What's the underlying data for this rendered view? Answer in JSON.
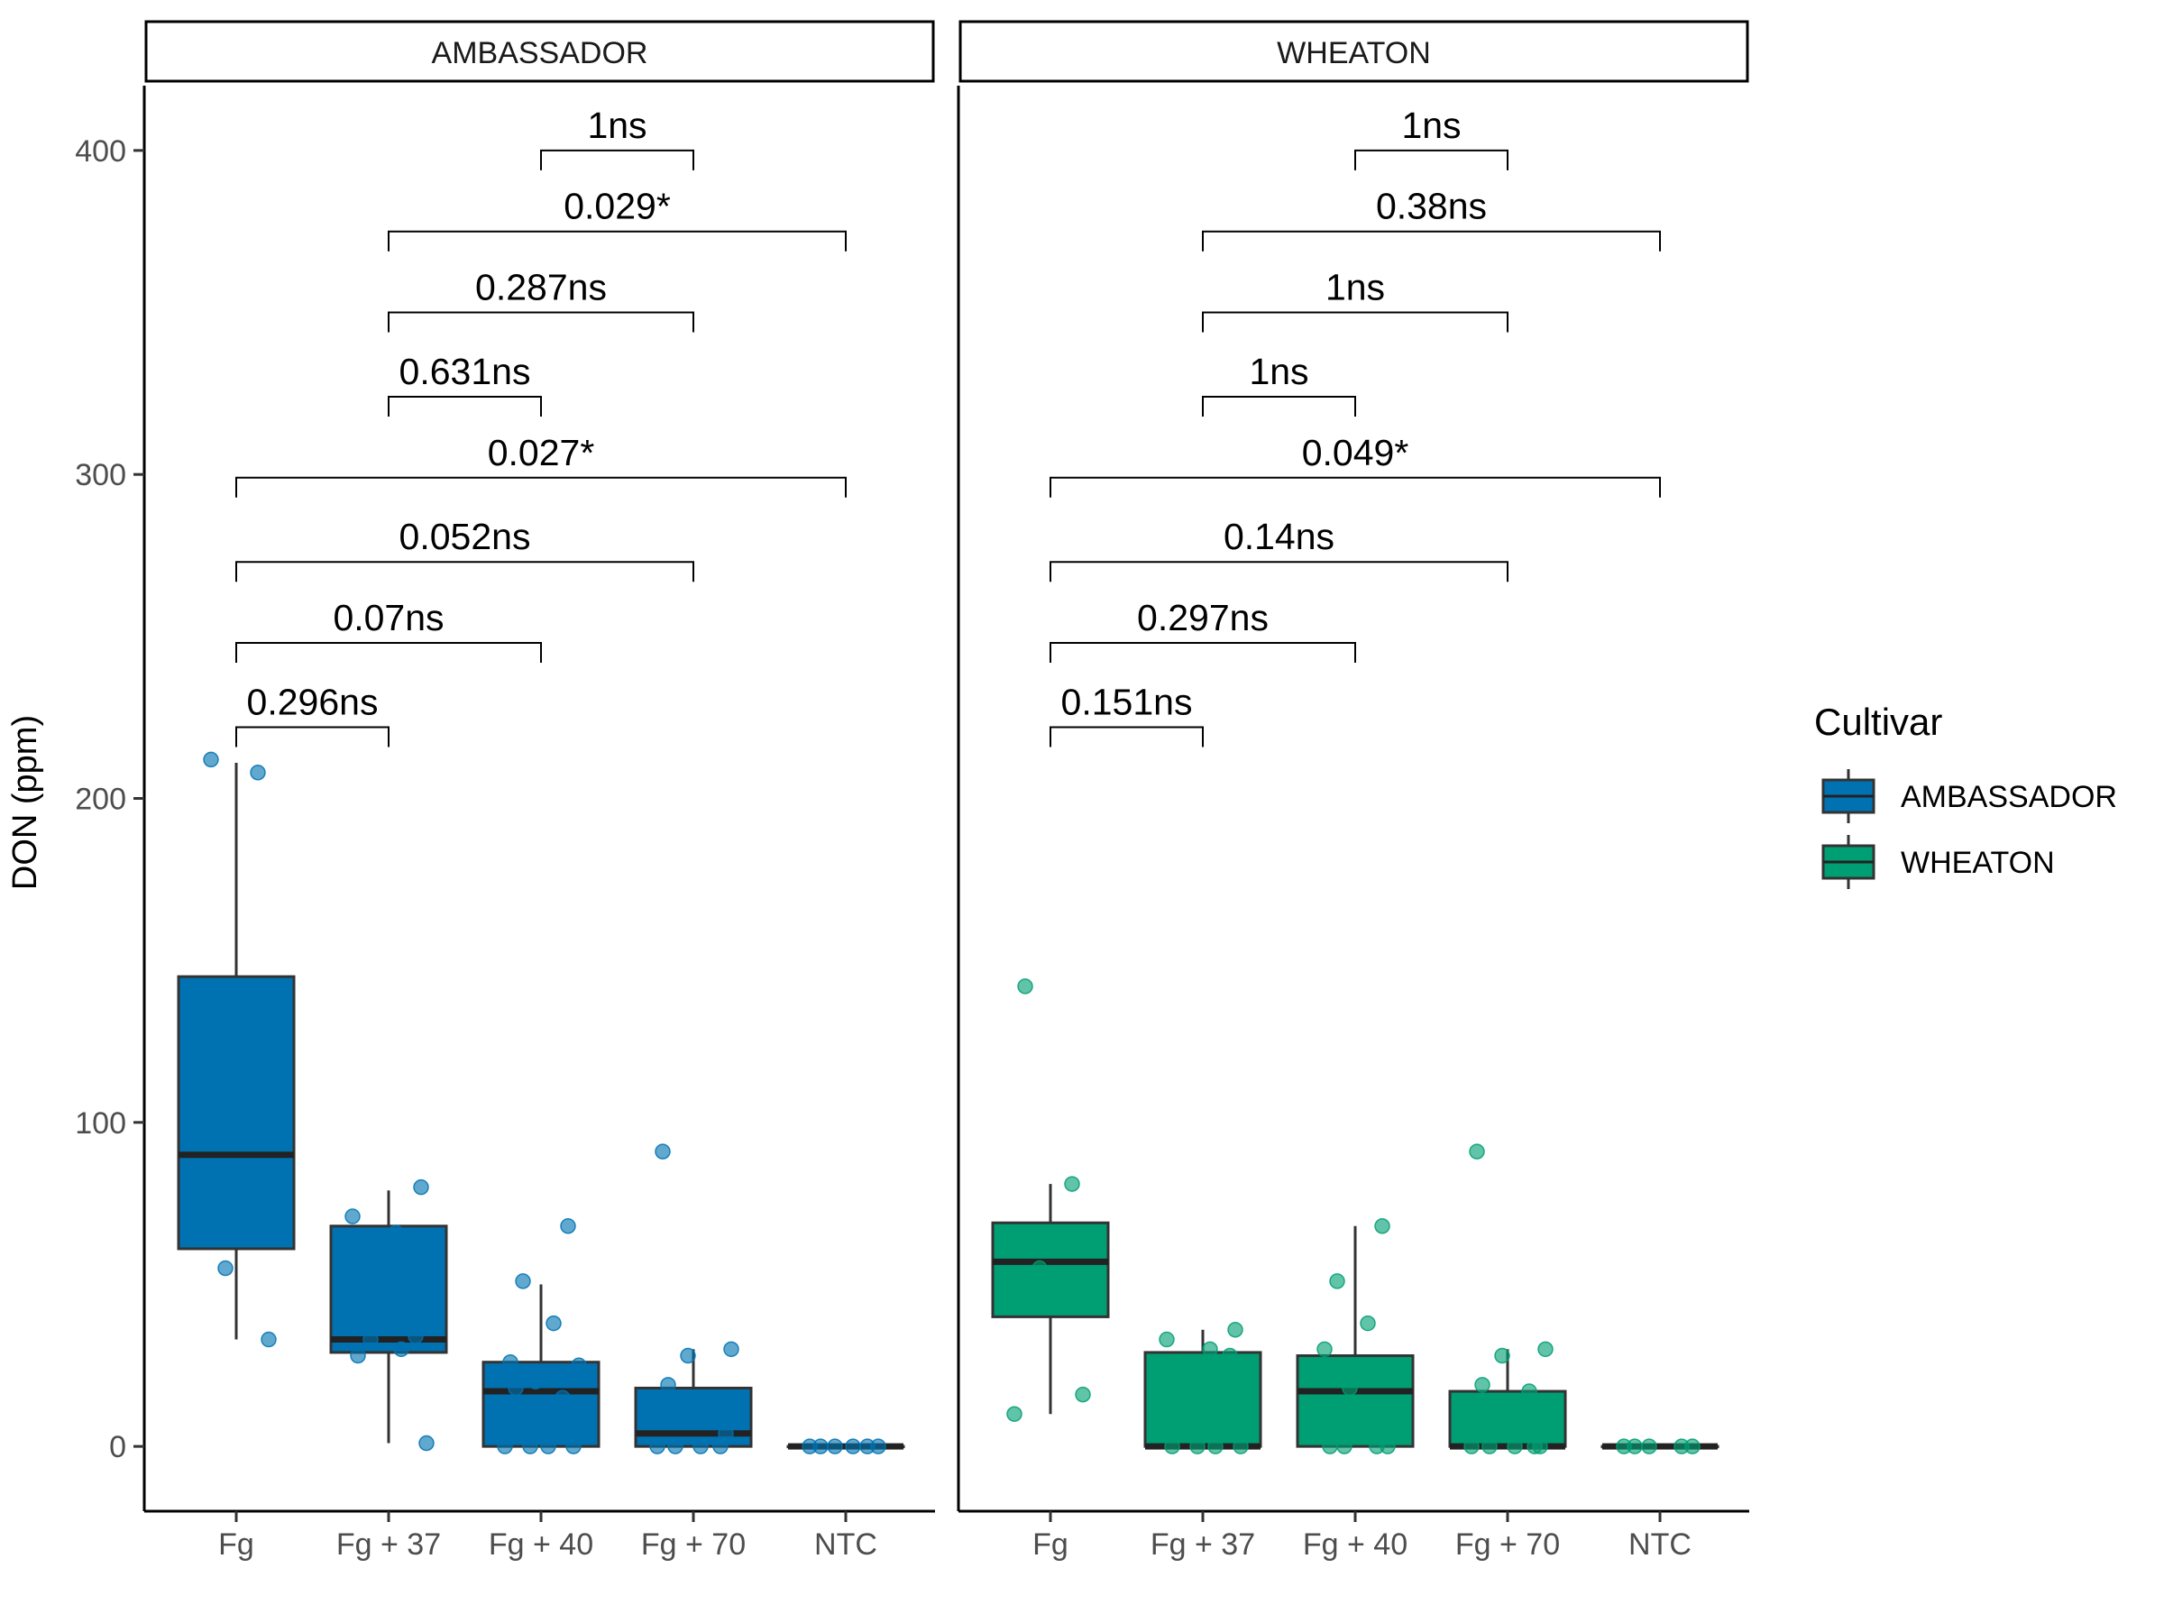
{
  "chart_data": {
    "type": "box",
    "ylabel": "DON (ppm)",
    "ylim": [
      -20,
      420
    ],
    "yticks": [
      0,
      100,
      200,
      300,
      400
    ],
    "categories": [
      "Fg",
      "Fg + 37",
      "Fg + 40",
      "Fg + 70",
      "NTC"
    ],
    "grid": false,
    "legend": {
      "title": "Cultivar",
      "position": "right",
      "entries": [
        "AMBASSADOR",
        "WHEATON"
      ]
    },
    "colors": {
      "AMBASSADOR": "#0072B2",
      "WHEATON": "#009E73"
    },
    "panels": [
      {
        "name": "AMBASSADOR",
        "boxes": [
          {
            "category": "Fg",
            "lower_whisker": 33,
            "q1": 61,
            "median": 90,
            "q3": 145,
            "upper_whisker": 211
          },
          {
            "category": "Fg + 37",
            "lower_whisker": 1,
            "q1": 29,
            "median": 33,
            "q3": 68,
            "upper_whisker": 79
          },
          {
            "category": "Fg + 40",
            "lower_whisker": 0,
            "q1": 0,
            "median": 17,
            "q3": 26,
            "upper_whisker": 50
          },
          {
            "category": "Fg + 70",
            "lower_whisker": 0,
            "q1": 0,
            "median": 4,
            "q3": 18,
            "upper_whisker": 30
          },
          {
            "category": "NTC",
            "lower_whisker": 0,
            "q1": 0,
            "median": 0,
            "q3": 0,
            "upper_whisker": 0
          }
        ],
        "points": [
          {
            "category": "Fg",
            "values": [
              212,
              208,
              55,
              33
            ]
          },
          {
            "category": "Fg + 37",
            "values": [
              80,
              71,
              66,
              34,
              33,
              30,
              28,
              1
            ]
          },
          {
            "category": "Fg + 40",
            "values": [
              68,
              51,
              38,
              26,
              25,
              20,
              18,
              15,
              0,
              0,
              0,
              0
            ]
          },
          {
            "category": "Fg + 70",
            "values": [
              91,
              30,
              28,
              19,
              15,
              8,
              4,
              0,
              0,
              0,
              0
            ]
          },
          {
            "category": "NTC",
            "values": [
              0,
              0,
              0,
              0,
              0,
              0
            ]
          }
        ],
        "comparisons": [
          {
            "from": "Fg",
            "to": "Fg + 37",
            "label": "0.296ns"
          },
          {
            "from": "Fg",
            "to": "Fg + 40",
            "label": "0.07ns"
          },
          {
            "from": "Fg",
            "to": "Fg + 70",
            "label": "0.052ns"
          },
          {
            "from": "Fg",
            "to": "NTC",
            "label": "0.027*"
          },
          {
            "from": "Fg + 37",
            "to": "Fg + 40",
            "label": "0.631ns"
          },
          {
            "from": "Fg + 37",
            "to": "Fg + 70",
            "label": "0.287ns"
          },
          {
            "from": "Fg + 37",
            "to": "NTC",
            "label": "0.029*"
          },
          {
            "from": "Fg + 40",
            "to": "Fg + 70",
            "label": "1ns"
          }
        ]
      },
      {
        "name": "WHEATON",
        "boxes": [
          {
            "category": "Fg",
            "lower_whisker": 10,
            "q1": 40,
            "median": 57,
            "q3": 69,
            "upper_whisker": 81
          },
          {
            "category": "Fg + 37",
            "lower_whisker": 0,
            "q1": 0,
            "median": 0,
            "q3": 29,
            "upper_whisker": 36
          },
          {
            "category": "Fg + 40",
            "lower_whisker": 0,
            "q1": 0,
            "median": 17,
            "q3": 28,
            "upper_whisker": 68
          },
          {
            "category": "Fg + 70",
            "lower_whisker": 0,
            "q1": 0,
            "median": 0,
            "q3": 17,
            "upper_whisker": 30
          },
          {
            "category": "NTC",
            "lower_whisker": 0,
            "q1": 0,
            "median": 0,
            "q3": 0,
            "upper_whisker": 0
          }
        ],
        "points": [
          {
            "category": "Fg",
            "values": [
              142,
              81,
              55,
              16,
              10
            ]
          },
          {
            "category": "Fg + 37",
            "values": [
              36,
              33,
              30,
              28,
              25,
              0,
              0,
              0,
              0
            ]
          },
          {
            "category": "Fg + 40",
            "values": [
              68,
              51,
              38,
              30,
              25,
              18,
              0,
              0,
              0,
              0
            ]
          },
          {
            "category": "Fg + 70",
            "values": [
              91,
              30,
              28,
              19,
              17,
              12,
              0,
              0,
              0,
              0,
              0
            ]
          },
          {
            "category": "NTC",
            "values": [
              0,
              0,
              0,
              0,
              0
            ]
          }
        ],
        "comparisons": [
          {
            "from": "Fg",
            "to": "Fg + 37",
            "label": "0.151ns"
          },
          {
            "from": "Fg",
            "to": "Fg + 40",
            "label": "0.297ns"
          },
          {
            "from": "Fg",
            "to": "Fg + 70",
            "label": "0.14ns"
          },
          {
            "from": "Fg",
            "to": "NTC",
            "label": "0.049*"
          },
          {
            "from": "Fg + 37",
            "to": "Fg + 40",
            "label": "1ns"
          },
          {
            "from": "Fg + 37",
            "to": "Fg + 70",
            "label": "1ns"
          },
          {
            "from": "Fg + 37",
            "to": "NTC",
            "label": "0.38ns"
          },
          {
            "from": "Fg + 40",
            "to": "Fg + 70",
            "label": "1ns"
          }
        ]
      }
    ]
  }
}
